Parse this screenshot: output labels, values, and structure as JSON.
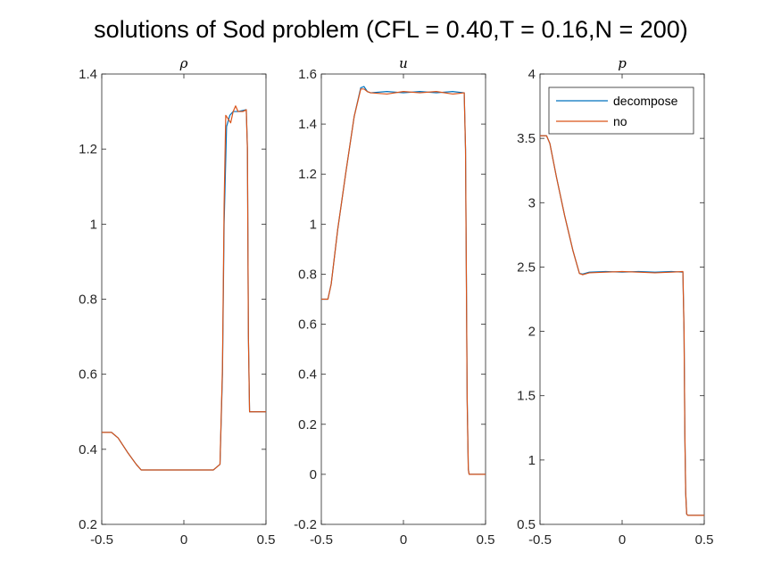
{
  "figure_title": "solutions of Sod problem (CFL = 0.40,T = 0.16,N = 200)",
  "colors": {
    "decompose": "#0072BD",
    "no": "#D95319"
  },
  "chart_data": [
    {
      "type": "line",
      "title": "ρ",
      "xlim": [
        -0.5,
        0.5
      ],
      "ylim": [
        0.2,
        1.4
      ],
      "xticks": [
        "-0.5",
        "0",
        "0.5"
      ],
      "xtick_values": [
        -0.5,
        0,
        0.5
      ],
      "yticks": [
        "0.2",
        "0.4",
        "0.6",
        "0.8",
        "1",
        "1.2",
        "1.4"
      ],
      "ytick_values": [
        0.2,
        0.4,
        0.6,
        0.8,
        1,
        1.2,
        1.4
      ],
      "series": [
        {
          "name": "decompose",
          "x": [
            -0.5,
            -0.44,
            -0.4,
            -0.34,
            -0.29,
            -0.26,
            -0.24,
            -0.2,
            0.0,
            0.18,
            0.22,
            0.235,
            0.245,
            0.26,
            0.28,
            0.3,
            0.33,
            0.36,
            0.38,
            0.387,
            0.393,
            0.4,
            0.5
          ],
          "y": [
            0.445,
            0.445,
            0.43,
            0.39,
            0.36,
            0.345,
            0.345,
            0.345,
            0.345,
            0.345,
            0.36,
            0.6,
            1.0,
            1.26,
            1.29,
            1.3,
            1.3,
            1.303,
            1.305,
            1.2,
            0.7,
            0.5,
            0.5
          ]
        },
        {
          "name": "no",
          "x": [
            -0.5,
            -0.44,
            -0.4,
            -0.34,
            -0.29,
            -0.26,
            -0.24,
            -0.2,
            0.0,
            0.18,
            0.22,
            0.235,
            0.245,
            0.255,
            0.27,
            0.285,
            0.3,
            0.315,
            0.33,
            0.36,
            0.38,
            0.387,
            0.393,
            0.4,
            0.5
          ],
          "y": [
            0.445,
            0.445,
            0.43,
            0.39,
            0.36,
            0.345,
            0.345,
            0.345,
            0.345,
            0.345,
            0.36,
            0.62,
            1.05,
            1.29,
            1.28,
            1.27,
            1.3,
            1.315,
            1.3,
            1.3,
            1.305,
            1.2,
            0.7,
            0.5,
            0.5
          ]
        }
      ]
    },
    {
      "type": "line",
      "title": "u",
      "xlim": [
        -0.5,
        0.5
      ],
      "ylim": [
        -0.2,
        1.6
      ],
      "xticks": [
        "-0.5",
        "0",
        "0.5"
      ],
      "xtick_values": [
        -0.5,
        0,
        0.5
      ],
      "yticks": [
        "-0.2",
        "0",
        "0.2",
        "0.4",
        "0.6",
        "0.8",
        "1",
        "1.2",
        "1.4",
        "1.6"
      ],
      "ytick_values": [
        -0.2,
        0,
        0.2,
        0.4,
        0.6,
        0.8,
        1,
        1.2,
        1.4,
        1.6
      ],
      "series": [
        {
          "name": "decompose",
          "x": [
            -0.5,
            -0.46,
            -0.44,
            -0.4,
            -0.35,
            -0.3,
            -0.26,
            -0.24,
            -0.22,
            -0.2,
            -0.1,
            0.0,
            0.1,
            0.2,
            0.3,
            0.37,
            0.378,
            0.383,
            0.388,
            0.395,
            0.4,
            0.5
          ],
          "y": [
            0.7,
            0.7,
            0.76,
            0.98,
            1.21,
            1.43,
            1.545,
            1.55,
            1.53,
            1.525,
            1.53,
            1.525,
            1.53,
            1.525,
            1.53,
            1.525,
            1.3,
            0.8,
            0.3,
            0.02,
            0.0,
            0.0
          ]
        },
        {
          "name": "no",
          "x": [
            -0.5,
            -0.46,
            -0.44,
            -0.4,
            -0.35,
            -0.3,
            -0.26,
            -0.24,
            -0.22,
            -0.2,
            -0.1,
            0.0,
            0.1,
            0.2,
            0.3,
            0.37,
            0.378,
            0.383,
            0.388,
            0.395,
            0.4,
            0.5
          ],
          "y": [
            0.7,
            0.7,
            0.76,
            0.98,
            1.21,
            1.43,
            1.54,
            1.54,
            1.53,
            1.525,
            1.52,
            1.53,
            1.525,
            1.53,
            1.52,
            1.525,
            1.3,
            0.8,
            0.3,
            0.02,
            0.0,
            0.0
          ]
        }
      ]
    },
    {
      "type": "line",
      "title": "p",
      "xlim": [
        -0.5,
        0.5
      ],
      "ylim": [
        0.5,
        4
      ],
      "xticks": [
        "-0.5",
        "0",
        "0.5"
      ],
      "xtick_values": [
        -0.5,
        0,
        0.5
      ],
      "yticks": [
        "0.5",
        "1",
        "1.5",
        "2",
        "2.5",
        "3",
        "3.5",
        "4"
      ],
      "ytick_values": [
        0.5,
        1,
        1.5,
        2,
        2.5,
        3,
        3.5,
        4
      ],
      "legend": {
        "entries": [
          "decompose",
          "no"
        ],
        "location": "top-right"
      },
      "series": [
        {
          "name": "decompose",
          "x": [
            -0.5,
            -0.46,
            -0.44,
            -0.4,
            -0.35,
            -0.3,
            -0.26,
            -0.24,
            -0.2,
            -0.1,
            0.0,
            0.1,
            0.2,
            0.3,
            0.37,
            0.377,
            0.382,
            0.387,
            0.393,
            0.4,
            0.5
          ],
          "y": [
            3.52,
            3.52,
            3.46,
            3.2,
            2.9,
            2.63,
            2.45,
            2.445,
            2.46,
            2.465,
            2.46,
            2.465,
            2.46,
            2.465,
            2.46,
            2.0,
            1.2,
            0.75,
            0.58,
            0.57,
            0.57
          ]
        },
        {
          "name": "no",
          "x": [
            -0.5,
            -0.46,
            -0.44,
            -0.4,
            -0.35,
            -0.3,
            -0.26,
            -0.24,
            -0.2,
            -0.1,
            0.0,
            0.1,
            0.2,
            0.3,
            0.37,
            0.377,
            0.382,
            0.387,
            0.393,
            0.4,
            0.5
          ],
          "y": [
            3.52,
            3.52,
            3.46,
            3.2,
            2.9,
            2.63,
            2.45,
            2.44,
            2.455,
            2.46,
            2.465,
            2.46,
            2.455,
            2.46,
            2.465,
            2.0,
            1.2,
            0.75,
            0.58,
            0.57,
            0.57
          ]
        }
      ]
    }
  ]
}
